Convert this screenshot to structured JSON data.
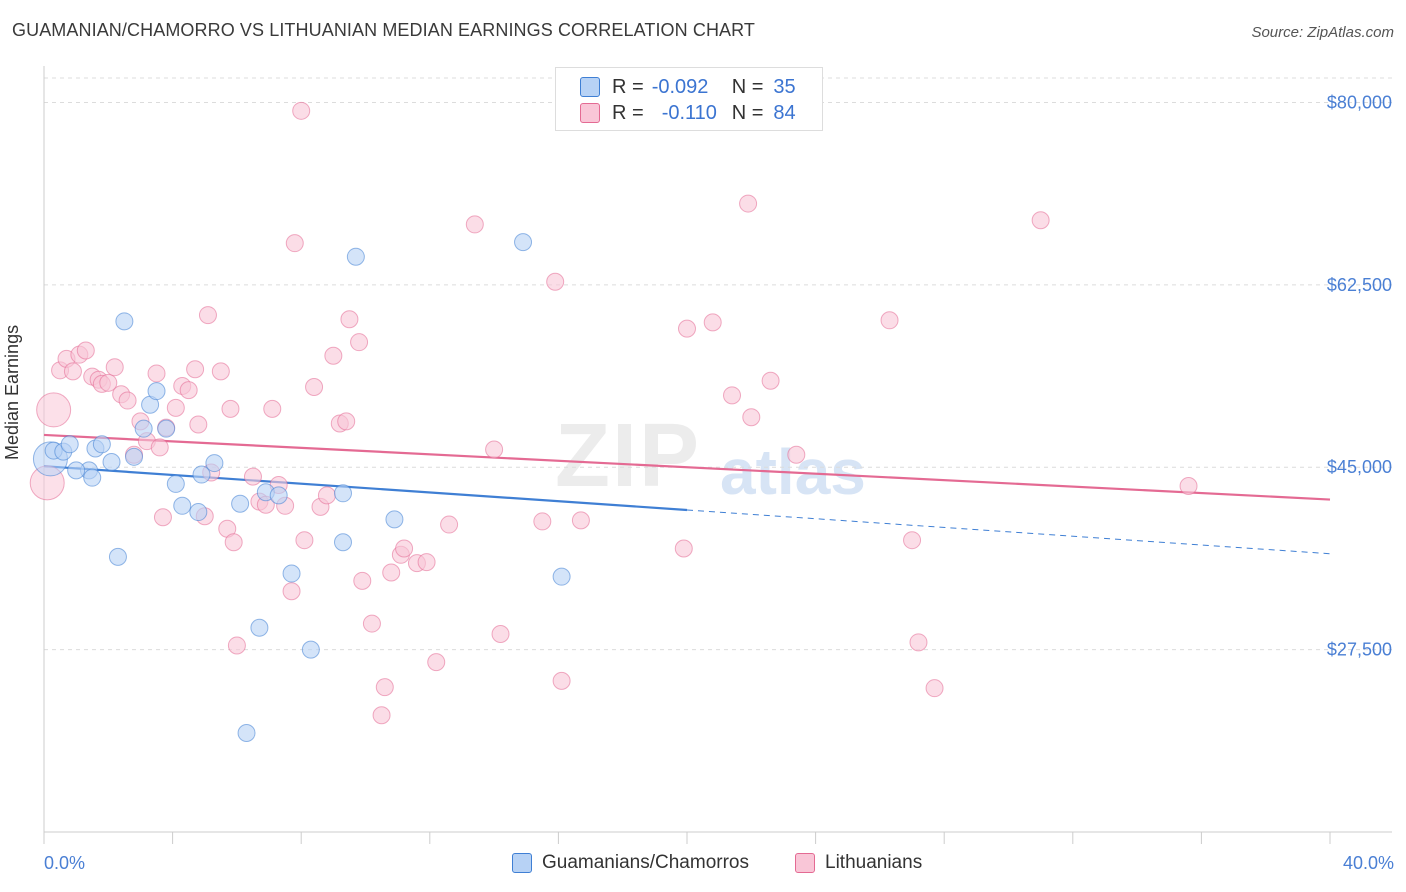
{
  "title": "GUAMANIAN/CHAMORRO VS LITHUANIAN MEDIAN EARNINGS CORRELATION CHART",
  "source": "Source: ZipAtlas.com",
  "watermark": {
    "zip": "ZIP",
    "atlas": "atlas"
  },
  "legend": {
    "rows": [
      {
        "r_label": "R =",
        "r_value": "-0.092",
        "n_label": "N =",
        "n_value": "35",
        "color": "#a9c8f3"
      },
      {
        "r_label": "R =",
        "r_value": "-0.110",
        "n_label": "N =",
        "n_value": "84",
        "color": "#f6b8cd"
      }
    ]
  },
  "bottom_legend": {
    "series1": "Guamanians/Chamorros",
    "series2": "Lithuanians"
  },
  "colors": {
    "blue": "#3f7fd4",
    "pink": "#e46a93",
    "blue_fill": "#b7d2f5",
    "pink_fill": "#f9c6d7",
    "label": "#4a7fd4",
    "grid": "#dcdcdc"
  },
  "chart_data": {
    "type": "scatter",
    "title": "GUAMANIAN/CHAMORRO VS LITHUANIAN MEDIAN EARNINGS CORRELATION CHART",
    "xlabel": "",
    "ylabel": "Median Earnings",
    "xlim": [
      0,
      40
    ],
    "ylim": [
      10000,
      83500
    ],
    "x_tick_labels": [
      "0.0%",
      "40.0%"
    ],
    "y_ticks": [
      27500,
      45000,
      62500,
      80000
    ],
    "y_tick_labels": [
      "$27,500",
      "$45,000",
      "$62,500",
      "$80,000"
    ],
    "grid": true,
    "legend_position": "top-center",
    "series": [
      {
        "name": "Guamanians/Chamorros",
        "r": -0.092,
        "n": 35,
        "trend": {
          "x_solid": [
            0,
            20
          ],
          "y_solid": [
            45100,
            40900
          ],
          "x_dashed": [
            20,
            40
          ],
          "y_dashed": [
            40900,
            36700
          ]
        },
        "points": [
          [
            0.2,
            45800,
            "big"
          ],
          [
            0.3,
            46600
          ],
          [
            0.6,
            46500
          ],
          [
            0.8,
            47200
          ],
          [
            1.4,
            44700
          ],
          [
            1.5,
            44000
          ],
          [
            1.6,
            46800
          ],
          [
            1.8,
            47200
          ],
          [
            2.1,
            45500
          ],
          [
            2.3,
            36400
          ],
          [
            2.5,
            59000
          ],
          [
            2.8,
            46000
          ],
          [
            3.1,
            48700
          ],
          [
            3.3,
            51000
          ],
          [
            3.5,
            52300
          ],
          [
            3.8,
            48700
          ],
          [
            4.1,
            43400
          ],
          [
            4.3,
            41300
          ],
          [
            4.8,
            40700
          ],
          [
            4.9,
            44300
          ],
          [
            5.3,
            45400
          ],
          [
            6.1,
            41500
          ],
          [
            6.3,
            19500
          ],
          [
            6.7,
            29600
          ],
          [
            6.9,
            42600
          ],
          [
            7.3,
            42300
          ],
          [
            7.7,
            34800
          ],
          [
            8.3,
            27500
          ],
          [
            9.3,
            37800
          ],
          [
            9.3,
            42500
          ],
          [
            9.7,
            65200
          ],
          [
            10.9,
            40000
          ],
          [
            14.9,
            66600
          ],
          [
            16.1,
            34500
          ],
          [
            1.0,
            44700
          ]
        ]
      },
      {
        "name": "Lithuanians",
        "r": -0.11,
        "n": 84,
        "trend": {
          "x_solid": [
            0,
            40
          ],
          "y_solid": [
            48100,
            41900
          ]
        },
        "points": [
          [
            0.1,
            43500,
            "big"
          ],
          [
            0.3,
            50500,
            "big"
          ],
          [
            0.5,
            54300
          ],
          [
            0.7,
            55400
          ],
          [
            0.9,
            54200
          ],
          [
            1.1,
            55800
          ],
          [
            1.3,
            56200
          ],
          [
            1.5,
            53700
          ],
          [
            1.7,
            53400
          ],
          [
            1.8,
            53000
          ],
          [
            2.0,
            53100
          ],
          [
            2.2,
            54600
          ],
          [
            2.4,
            52000
          ],
          [
            2.6,
            51400
          ],
          [
            2.8,
            46200
          ],
          [
            3.0,
            49400
          ],
          [
            3.2,
            47500
          ],
          [
            3.5,
            54000
          ],
          [
            3.6,
            46900
          ],
          [
            3.8,
            48800
          ],
          [
            3.7,
            40200
          ],
          [
            4.1,
            50700
          ],
          [
            4.3,
            52800
          ],
          [
            4.5,
            52400
          ],
          [
            4.7,
            54400
          ],
          [
            5.0,
            40300
          ],
          [
            5.1,
            59600
          ],
          [
            5.2,
            44500
          ],
          [
            5.5,
            54200
          ],
          [
            5.7,
            39100
          ],
          [
            5.8,
            50600
          ],
          [
            5.9,
            37800
          ],
          [
            6.0,
            27900
          ],
          [
            6.5,
            44100
          ],
          [
            6.7,
            41700
          ],
          [
            6.9,
            41400
          ],
          [
            7.1,
            50600
          ],
          [
            7.3,
            43300
          ],
          [
            7.5,
            41300
          ],
          [
            7.7,
            33100
          ],
          [
            7.8,
            66500
          ],
          [
            8.0,
            79200
          ],
          [
            8.1,
            38000
          ],
          [
            8.4,
            52700
          ],
          [
            8.6,
            41200
          ],
          [
            8.8,
            42300
          ],
          [
            9.0,
            55700
          ],
          [
            9.2,
            49200
          ],
          [
            9.4,
            49400
          ],
          [
            9.5,
            59200
          ],
          [
            9.8,
            57000
          ],
          [
            9.9,
            34100
          ],
          [
            10.2,
            30000
          ],
          [
            10.5,
            21200
          ],
          [
            10.6,
            23900
          ],
          [
            10.8,
            34900
          ],
          [
            11.1,
            36600
          ],
          [
            11.2,
            37200
          ],
          [
            11.6,
            35800
          ],
          [
            11.9,
            35900
          ],
          [
            12.2,
            26300
          ],
          [
            12.6,
            39500
          ],
          [
            13.4,
            68300
          ],
          [
            14.0,
            46700
          ],
          [
            14.2,
            29000
          ],
          [
            15.5,
            39800
          ],
          [
            15.9,
            62800
          ],
          [
            16.1,
            24500
          ],
          [
            16.7,
            39900
          ],
          [
            19.9,
            37200
          ],
          [
            20.0,
            58300
          ],
          [
            20.8,
            58900
          ],
          [
            21.4,
            51900
          ],
          [
            21.9,
            70300
          ],
          [
            22.0,
            49800
          ],
          [
            22.6,
            53300
          ],
          [
            23.4,
            46200
          ],
          [
            26.3,
            59100
          ],
          [
            27.0,
            38000
          ],
          [
            27.2,
            28200
          ],
          [
            27.7,
            23800
          ],
          [
            31.0,
            68700
          ],
          [
            35.6,
            43200
          ],
          [
            4.8,
            49100
          ]
        ]
      }
    ]
  }
}
